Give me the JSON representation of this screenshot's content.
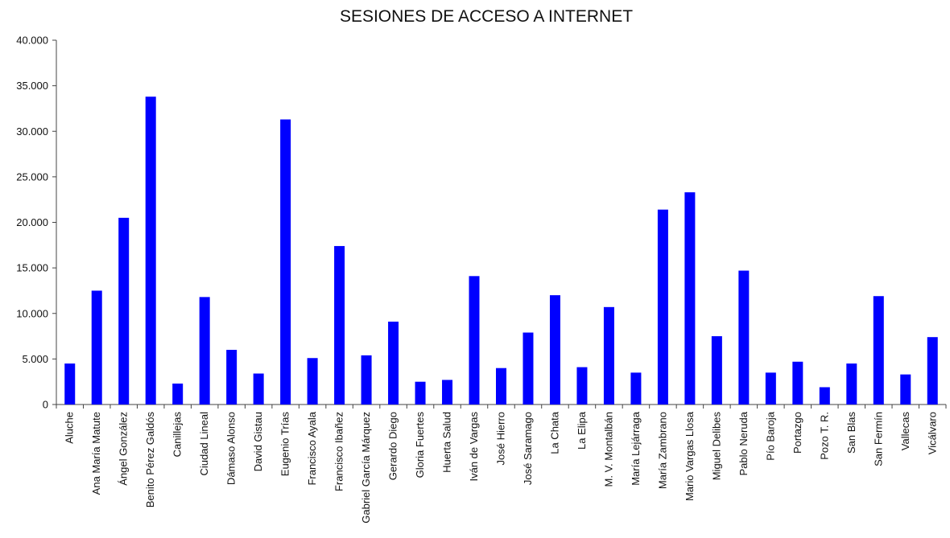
{
  "chart_data": {
    "type": "bar",
    "title": "SESIONES DE ACCESO A INTERNET",
    "xlabel": "",
    "ylabel": "",
    "ylim": [
      0,
      40000
    ],
    "yticks": [
      0,
      5000,
      10000,
      15000,
      20000,
      25000,
      30000,
      35000,
      40000
    ],
    "ytick_labels": [
      "0",
      "5.000",
      "10.000",
      "15.000",
      "20.000",
      "25.000",
      "30.000",
      "35.000",
      "40.000"
    ],
    "grid": false,
    "legend": "none",
    "bar_color": "#0000ff",
    "categories": [
      "Aluche",
      "Ana María Matute",
      "Ángel González",
      "Benito Pérez Galdós",
      "Canillejas",
      "Ciudad Lineal",
      "Dámaso Alonso",
      "David Gistau",
      "Eugenio Trías",
      "Francisco Ayala",
      "Francisco Ibañez",
      "Gabriel García Márquez",
      "Gerardo Diego",
      "Gloria Fuertes",
      "Huerta Salud",
      "Iván de Vargas",
      "José Hierro",
      "José Saramago",
      "La Chata",
      "La Elipa",
      "M. V. Montalbán",
      "María Lejárraga",
      "María Zambrano",
      "Mario Vargas Llosa",
      "Miguel Delibes",
      "Pablo Neruda",
      "Pío Baroja",
      "Portazgo",
      "Pozo T. R.",
      "San Blas",
      "San Fermín",
      "Vallecas",
      "Vicálvaro"
    ],
    "values": [
      4500,
      12500,
      20500,
      33800,
      2300,
      11800,
      6000,
      3400,
      31300,
      5100,
      17400,
      5400,
      9100,
      2500,
      2700,
      14100,
      4000,
      7900,
      12000,
      4100,
      10700,
      3500,
      21400,
      23300,
      7500,
      14700,
      3500,
      4700,
      1900,
      4500,
      11900,
      3300,
      7400
    ]
  }
}
